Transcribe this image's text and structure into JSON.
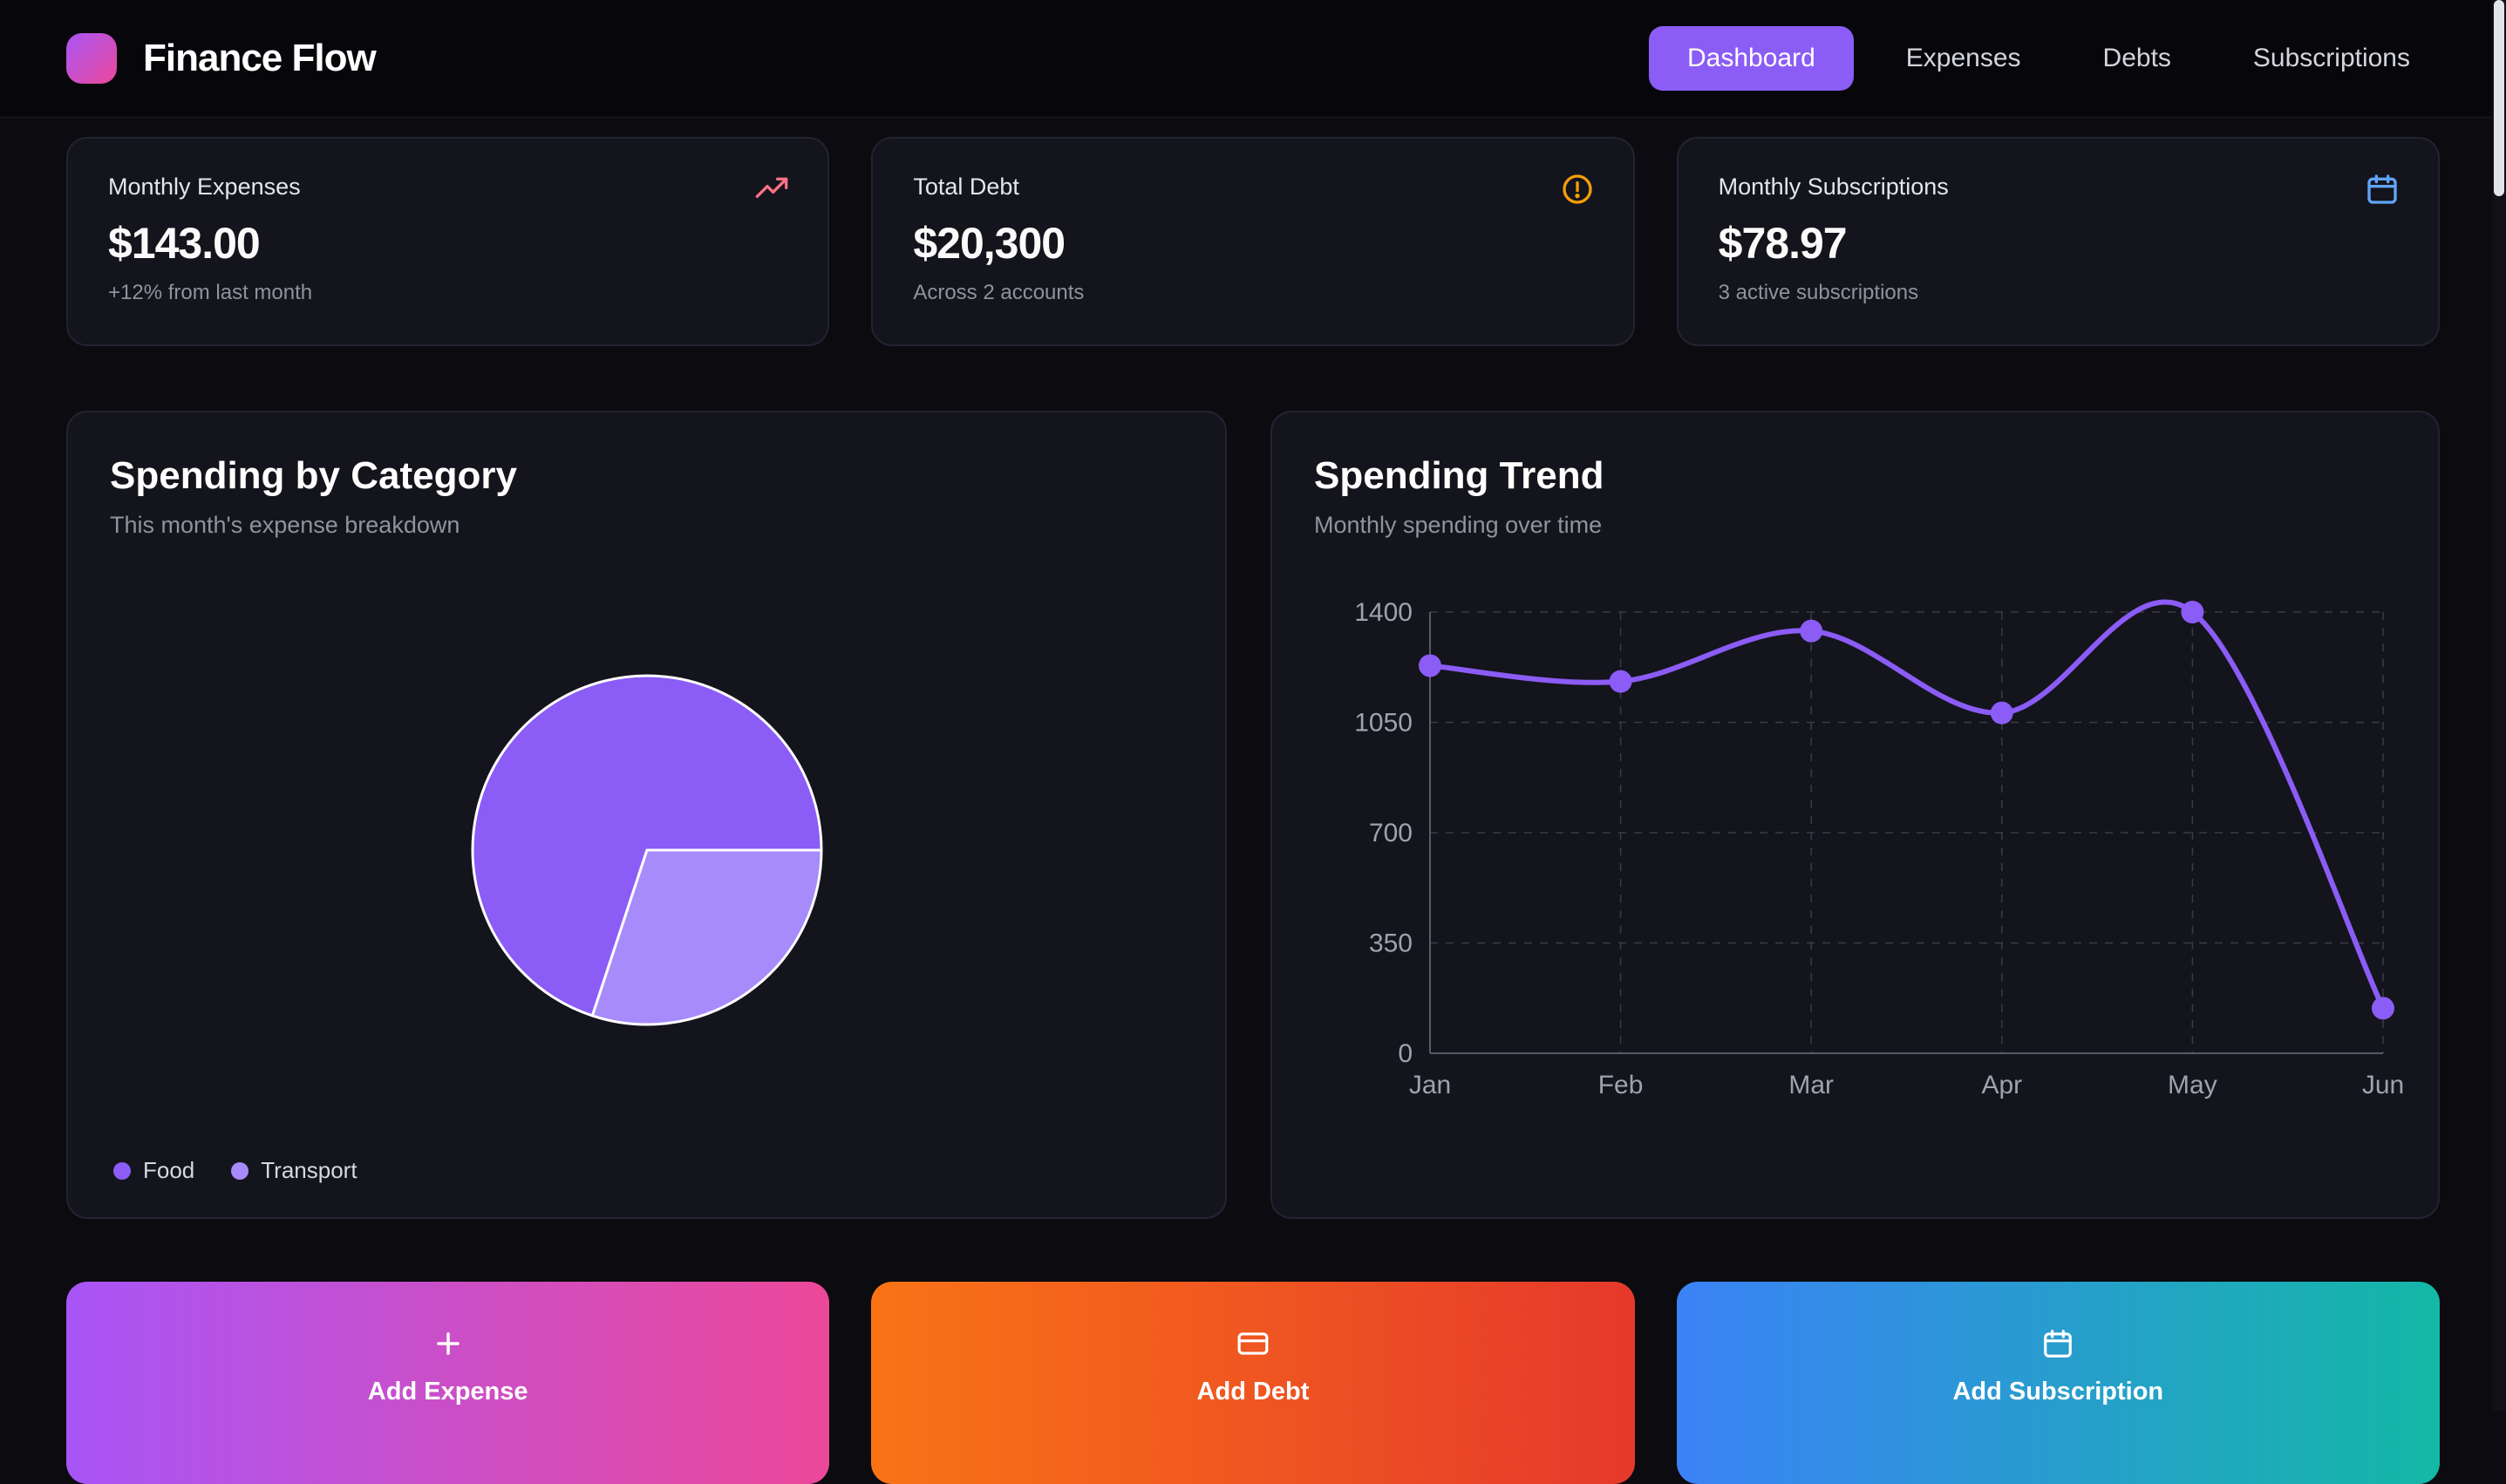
{
  "app": {
    "name": "Finance Flow",
    "logo_gradient": [
      "#a855f7",
      "#ec4899"
    ]
  },
  "nav": {
    "active_bg": "#8b5cf6",
    "items": [
      {
        "label": "Dashboard",
        "active": true
      },
      {
        "label": "Expenses",
        "active": false
      },
      {
        "label": "Debts",
        "active": false
      },
      {
        "label": "Subscriptions",
        "active": false
      }
    ]
  },
  "stats": [
    {
      "label": "Monthly Expenses",
      "value": "$143.00",
      "subtext": "+12% from last month",
      "icon": "trending-up-icon",
      "icon_color": "#fb7185"
    },
    {
      "label": "Total Debt",
      "value": "$20,300",
      "subtext": "Across 2 accounts",
      "icon": "alert-circle-icon",
      "icon_color": "#f59e0b"
    },
    {
      "label": "Monthly Subscriptions",
      "value": "$78.97",
      "subtext": "3 active subscriptions",
      "icon": "calendar-icon",
      "icon_color": "#60a5fa"
    }
  ],
  "chart_data": [
    {
      "type": "pie",
      "title": "Spending by Category",
      "subtitle": "This month's expense breakdown",
      "slices": [
        {
          "label": "Food",
          "value": 100,
          "color": "#8b5cf6"
        },
        {
          "label": "Transport",
          "value": 43,
          "color": "#a78bfa"
        }
      ],
      "start_angle_deg": 0,
      "direction": "counterclockwise",
      "stroke_color": "#ffffff",
      "legend_position": "bottom-left"
    },
    {
      "type": "line",
      "title": "Spending Trend",
      "subtitle": "Monthly spending over time",
      "x": [
        "Jan",
        "Feb",
        "Mar",
        "Apr",
        "May",
        "Jun"
      ],
      "series": [
        {
          "name": "Monthly spending",
          "values": [
            1230,
            1180,
            1340,
            1080,
            1400,
            143
          ],
          "color": "#8b5cf6"
        }
      ],
      "ylim": [
        0,
        1400
      ],
      "yticks": [
        0,
        350,
        700,
        1050,
        1400
      ],
      "grid": "dashed",
      "grid_color": "#383c47",
      "tick_color": "#9ca3af"
    }
  ],
  "actions": [
    {
      "label": "Add Expense",
      "icon": "plus-icon",
      "gradient": [
        "#a855f7",
        "#ec4899"
      ]
    },
    {
      "label": "Add Debt",
      "icon": "credit-card-icon",
      "gradient": [
        "#f97316",
        "#e5392b"
      ]
    },
    {
      "label": "Add Subscription",
      "icon": "calendar-icon",
      "gradient": [
        "#3b82f6",
        "#14b8a6"
      ]
    }
  ]
}
